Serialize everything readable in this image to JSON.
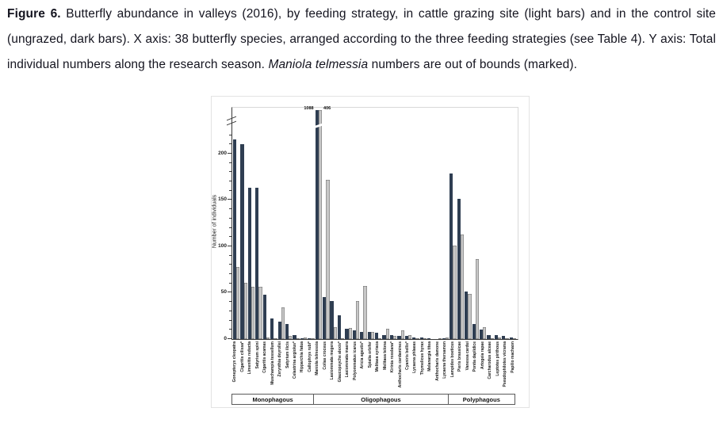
{
  "caption": {
    "label": "Figure 6.",
    "text_before_italic": " Butterfly abundance in valleys (2016), by feeding strategy, in cattle grazing site (light bars) and in the control site (ungrazed, dark bars). X axis: 38 butterfly species, arranged according to the three feeding strategies (see Table 4). Y axis: Total individual numbers along the research season. ",
    "italic": "Maniola telmessia",
    "text_after_italic": " numbers are out of bounds (marked)."
  },
  "chart_data": {
    "type": "bar",
    "ylabel": "Number of individuals",
    "ylim": [
      0,
      248
    ],
    "yticks": [
      0,
      50,
      100,
      150,
      200
    ],
    "minor_tick_step": 10,
    "axis_break": true,
    "bar_meaning": {
      "dark": "control site (ungrazed)",
      "light": "cattle grazing site"
    },
    "colors": {
      "dark": "#2f3e52",
      "light": "#c7c7c7"
    },
    "out_of_bounds_labels": {
      "dark": "1088",
      "light": "406"
    },
    "groups": [
      {
        "name": "Monophagous",
        "species": [
          {
            "name": "Gonepteryx cleopatra",
            "dark": 215,
            "light": 78
          },
          {
            "name": "Cigaritis cilissa*",
            "dark": 210,
            "light": 61
          },
          {
            "name": "Limenitis reducta",
            "dark": 163,
            "light": 56
          },
          {
            "name": "Satyrium spini",
            "dark": 163,
            "light": 56
          },
          {
            "name": "Cigaritis acamas",
            "dark": 48,
            "light": 2
          },
          {
            "name": "Muschampia tessellum",
            "dark": 22,
            "light": 1
          },
          {
            "name": "Zerynthia deyrollei",
            "dark": 19,
            "light": 34
          },
          {
            "name": "Satyrium ilicis",
            "dark": 16,
            "light": 3
          },
          {
            "name": "Celastrina argiolus*",
            "dark": 4,
            "light": 1
          },
          {
            "name": "Hipparchia fatua",
            "dark": 1,
            "light": 2
          },
          {
            "name": "Callophrys rubi*",
            "dark": 1,
            "light": 1
          }
        ]
      },
      {
        "name": "Oligophagous",
        "species": [
          {
            "name": "Maniola telmessia",
            "dark": 1088,
            "light": 406,
            "clipped": true
          },
          {
            "name": "Colias croceus",
            "dark": 45,
            "light": 172
          },
          {
            "name": "Lasiommata megera",
            "dark": 41,
            "light": 13
          },
          {
            "name": "Glaucopsyche alexis*",
            "dark": 26,
            "light": 1
          },
          {
            "name": "Lasiommata maera",
            "dark": 11,
            "light": 12
          },
          {
            "name": "Polyommatus icarus",
            "dark": 9,
            "light": 41
          },
          {
            "name": "Aricia agestis*",
            "dark": 8,
            "light": 57
          },
          {
            "name": "Spialia orbifer",
            "dark": 8,
            "light": 8
          },
          {
            "name": "Melitaea syriaca",
            "dark": 7,
            "light": 1
          },
          {
            "name": "Melitaea telona",
            "dark": 4,
            "light": 11
          },
          {
            "name": "Kirinia roxelana*",
            "dark": 4,
            "light": 3
          },
          {
            "name": "Anthocharis cardamines",
            "dark": 3,
            "light": 9
          },
          {
            "name": "Cyaniris bellis*",
            "dark": 3,
            "light": 4
          },
          {
            "name": "Lycaena phlaeas",
            "dark": 2,
            "light": 1
          },
          {
            "name": "Thymelicus hyrax",
            "dark": 2,
            "light": 1
          },
          {
            "name": "Melanargia titea",
            "dark": 1,
            "light": 0
          },
          {
            "name": "Anthocharis damone",
            "dark": 0,
            "light": 1
          },
          {
            "name": "Lycaena thersamon",
            "dark": 1,
            "light": 2
          }
        ]
      },
      {
        "name": "Polyphagous",
        "species": [
          {
            "name": "Lampides boeticus",
            "dark": 179,
            "light": 101
          },
          {
            "name": "Pieris brassicae",
            "dark": 151,
            "light": 113
          },
          {
            "name": "Vanessa cardui",
            "dark": 51,
            "light": 49
          },
          {
            "name": "Pontia daplidice",
            "dark": 16,
            "light": 86
          },
          {
            "name": "Artogeia rapae",
            "dark": 10,
            "light": 13
          },
          {
            "name": "Carcharodus alceae",
            "dark": 4,
            "light": 1
          },
          {
            "name": "Leptotes pirithous",
            "dark": 4,
            "light": 2
          },
          {
            "name": "Pseudophilotes vicrama",
            "dark": 3,
            "light": 1
          },
          {
            "name": "Papilio machaon",
            "dark": 2,
            "light": 1
          }
        ]
      }
    ]
  }
}
